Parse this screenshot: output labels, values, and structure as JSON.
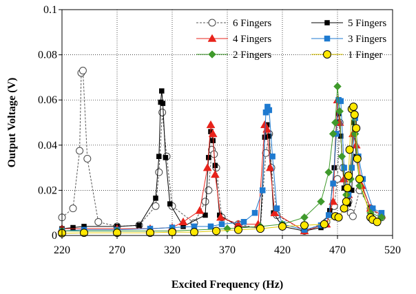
{
  "chart_data": {
    "type": "line",
    "title": "",
    "xlabel": "Excited Frequency (Hz)",
    "ylabel": "Output Voltage (V)",
    "xlim": [
      220,
      520
    ],
    "ylim": [
      0,
      0.1
    ],
    "xticks": [
      220,
      270,
      320,
      370,
      420,
      470,
      520
    ],
    "yticks": [
      0,
      0.02,
      0.04,
      0.06,
      0.08,
      0.1
    ],
    "xtick_labels": [
      "220",
      "270",
      "320",
      "370",
      "420",
      "470",
      "520"
    ],
    "ytick_labels": [
      "0",
      "0.02",
      "0.04",
      "0.06",
      "0.08",
      "0.1"
    ],
    "grid": "dotted",
    "legend_position": "top-right",
    "series": [
      {
        "name": "6 Fingers",
        "color": "#000000",
        "marker": "circle-open",
        "line": "dashed",
        "points": [
          [
            220,
            0.008
          ],
          [
            230,
            0.012
          ],
          [
            236,
            0.0375
          ],
          [
            237.5,
            0.072
          ],
          [
            239,
            0.073
          ],
          [
            243,
            0.034
          ],
          [
            253,
            0.006
          ],
          [
            270,
            0.004
          ],
          [
            290,
            0.0045
          ],
          [
            305,
            0.013
          ],
          [
            308,
            0.028
          ],
          [
            311,
            0.0545
          ],
          [
            315,
            0.035
          ],
          [
            320,
            0.013
          ],
          [
            340,
            0.0055
          ],
          [
            350,
            0.015
          ],
          [
            353,
            0.02
          ],
          [
            356,
            0.038
          ],
          [
            358,
            0.036
          ],
          [
            360,
            0.03
          ],
          [
            365,
            0.008
          ],
          [
            380,
            0.005
          ],
          [
            400,
            0.003
          ],
          [
            405,
            0.0365
          ],
          [
            408,
            0.045
          ],
          [
            410,
            0.03
          ],
          [
            415,
            0.009
          ],
          [
            440,
            0.002
          ],
          [
            460,
            0.006
          ],
          [
            467,
            0.013
          ],
          [
            470,
            0.025
          ],
          [
            472,
            0.05
          ],
          [
            475,
            0.03
          ],
          [
            480,
            0.015
          ],
          [
            482,
            0.01
          ],
          [
            484,
            0.0085
          ],
          [
            490,
            0.02
          ],
          [
            500,
            0.012
          ],
          [
            510,
            0.008
          ]
        ]
      },
      {
        "name": "5 Fingers",
        "color": "#000000",
        "marker": "square",
        "line": "solid",
        "points": [
          [
            220,
            0.003
          ],
          [
            230,
            0.0035
          ],
          [
            240,
            0.004
          ],
          [
            270,
            0.004
          ],
          [
            290,
            0.0045
          ],
          [
            305,
            0.0165
          ],
          [
            308,
            0.035
          ],
          [
            309.5,
            0.059
          ],
          [
            310.5,
            0.064
          ],
          [
            311.5,
            0.0585
          ],
          [
            314,
            0.0345
          ],
          [
            318,
            0.014
          ],
          [
            330,
            0.004
          ],
          [
            350,
            0.009
          ],
          [
            353,
            0.0345
          ],
          [
            355,
            0.046
          ],
          [
            357,
            0.042
          ],
          [
            359,
            0.031
          ],
          [
            363,
            0.009
          ],
          [
            380,
            0.004
          ],
          [
            400,
            0.0035
          ],
          [
            404,
            0.0435
          ],
          [
            406,
            0.049
          ],
          [
            408,
            0.044
          ],
          [
            412,
            0.01
          ],
          [
            420,
            0.004
          ],
          [
            440,
            0.002
          ],
          [
            455,
            0.0035
          ],
          [
            463,
            0.011
          ],
          [
            467,
            0.03
          ],
          [
            469,
            0.05
          ],
          [
            471,
            0.054
          ],
          [
            473,
            0.044
          ],
          [
            476,
            0.021
          ],
          [
            480,
            0.014
          ],
          [
            483,
            0.02
          ],
          [
            485,
            0.05
          ],
          [
            487,
            0.035
          ],
          [
            490,
            0.025
          ],
          [
            500,
            0.012
          ],
          [
            510,
            0.009
          ]
        ]
      },
      {
        "name": "4 Fingers",
        "color": "#e8231b",
        "marker": "triangle",
        "line": "solid",
        "points": [
          [
            220,
            0.003
          ],
          [
            270,
            0.003
          ],
          [
            300,
            0.003
          ],
          [
            320,
            0.0035
          ],
          [
            330,
            0.006
          ],
          [
            345,
            0.011
          ],
          [
            352,
            0.03
          ],
          [
            355,
            0.049
          ],
          [
            357,
            0.045
          ],
          [
            359,
            0.027
          ],
          [
            364,
            0.008
          ],
          [
            380,
            0.005
          ],
          [
            398,
            0.005
          ],
          [
            404,
            0.049
          ],
          [
            406,
            0.047
          ],
          [
            409,
            0.03
          ],
          [
            413,
            0.01
          ],
          [
            440,
            0.002
          ],
          [
            460,
            0.005
          ],
          [
            466,
            0.015
          ],
          [
            470,
            0.06
          ],
          [
            472,
            0.05
          ],
          [
            476,
            0.025
          ],
          [
            480,
            0.018
          ],
          [
            484,
            0.045
          ],
          [
            487,
            0.04
          ],
          [
            492,
            0.022
          ],
          [
            500,
            0.012
          ],
          [
            510,
            0.009
          ]
        ]
      },
      {
        "name": "3 Fingers",
        "color": "#1e7ad0",
        "marker": "square",
        "line": "solid",
        "points": [
          [
            220,
            0.002
          ],
          [
            240,
            0.0025
          ],
          [
            270,
            0.0025
          ],
          [
            300,
            0.003
          ],
          [
            320,
            0.0035
          ],
          [
            340,
            0.004
          ],
          [
            355,
            0.004
          ],
          [
            365,
            0.005
          ],
          [
            385,
            0.006
          ],
          [
            395,
            0.01
          ],
          [
            402,
            0.02
          ],
          [
            405,
            0.0545
          ],
          [
            406.5,
            0.057
          ],
          [
            408,
            0.0555
          ],
          [
            411,
            0.035
          ],
          [
            415,
            0.012
          ],
          [
            420,
            0.005
          ],
          [
            440,
            0.0025
          ],
          [
            455,
            0.0045
          ],
          [
            462,
            0.009
          ],
          [
            466,
            0.023
          ],
          [
            469,
            0.045
          ],
          [
            471,
            0.06
          ],
          [
            473,
            0.0595
          ],
          [
            476,
            0.03
          ],
          [
            480,
            0.018
          ],
          [
            483,
            0.03
          ],
          [
            486,
            0.052
          ],
          [
            489,
            0.035
          ],
          [
            493,
            0.025
          ],
          [
            502,
            0.012
          ],
          [
            510,
            0.01
          ]
        ]
      },
      {
        "name": "2 Fingers",
        "color": "#3f9a2c",
        "marker": "diamond",
        "line": "solid",
        "points": [
          [
            220,
            0.002
          ],
          [
            270,
            0.002
          ],
          [
            320,
            0.002
          ],
          [
            370,
            0.003
          ],
          [
            400,
            0.004
          ],
          [
            420,
            0.005
          ],
          [
            440,
            0.008
          ],
          [
            455,
            0.015
          ],
          [
            462,
            0.028
          ],
          [
            466,
            0.045
          ],
          [
            468,
            0.05
          ],
          [
            470,
            0.066
          ],
          [
            472,
            0.055
          ],
          [
            474,
            0.035
          ],
          [
            478,
            0.018
          ],
          [
            482,
            0.025
          ],
          [
            484,
            0.056
          ],
          [
            486,
            0.045
          ],
          [
            490,
            0.022
          ],
          [
            500,
            0.01
          ],
          [
            510,
            0.008
          ]
        ]
      },
      {
        "name": "1 Finger",
        "color": "#ffe800",
        "marker": "circle",
        "line": "solid",
        "points": [
          [
            220,
            0.001
          ],
          [
            240,
            0.0012
          ],
          [
            270,
            0.0012
          ],
          [
            300,
            0.0012
          ],
          [
            320,
            0.0015
          ],
          [
            340,
            0.0015
          ],
          [
            360,
            0.002
          ],
          [
            380,
            0.0025
          ],
          [
            400,
            0.003
          ],
          [
            420,
            0.004
          ],
          [
            440,
            0.0045
          ],
          [
            458,
            0.005
          ],
          [
            468,
            0.0085
          ],
          [
            471,
            0.008
          ],
          [
            476,
            0.012
          ],
          [
            478,
            0.015
          ],
          [
            479,
            0.021
          ],
          [
            480,
            0.0265
          ],
          [
            481,
            0.038
          ],
          [
            483,
            0.056
          ],
          [
            484.5,
            0.057
          ],
          [
            485.5,
            0.0535
          ],
          [
            487,
            0.0475
          ],
          [
            488,
            0.034
          ],
          [
            490,
            0.025
          ],
          [
            500,
            0.008
          ],
          [
            502,
            0.007
          ],
          [
            506,
            0.006
          ]
        ]
      }
    ]
  }
}
